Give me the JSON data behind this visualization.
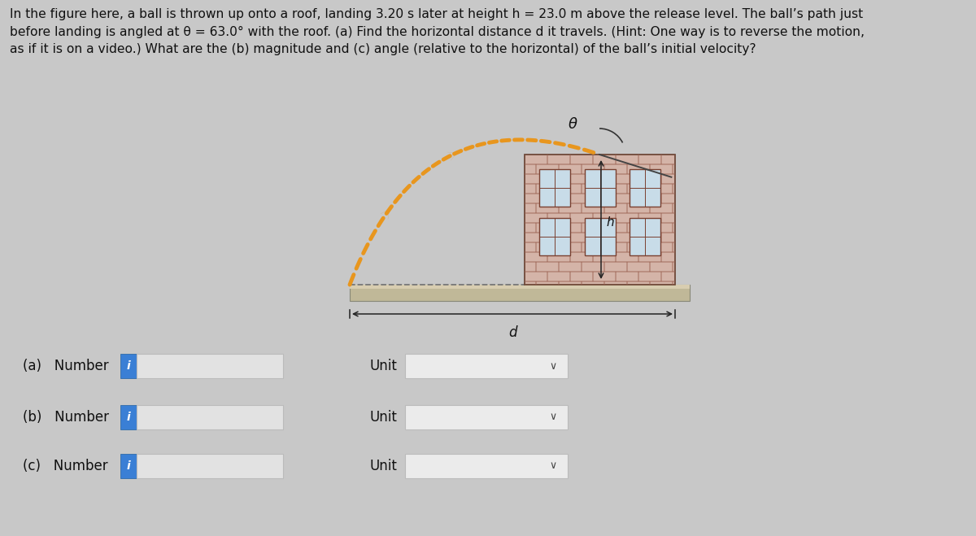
{
  "bg_color": "#c8c8c8",
  "title_text": "In the figure here, a ball is thrown up onto a roof, landing 3.20 s later at height h = 23.0 m above the release level. The ball’s path just\nbefore landing is angled at θ = 63.0° with the roof. (a) Find the horizontal distance d it travels. (Hint: One way is to reverse the motion,\nas if it is on a video.) What are the (b) magnitude and (c) angle (relative to the horizontal) of the ball’s initial velocity?",
  "label_a": "(a)   Number",
  "label_b": "(b)   Number",
  "label_c": "(c)   Number",
  "unit_label": "Unit",
  "input_box_color": "#e2e2e2",
  "input_box_border": "#bbbbbb",
  "blue_button_color": "#3a7fd5",
  "unit_box_color": "#ebebeb",
  "chevron_color": "#444444",
  "building_brick_color": "#d4b4a8",
  "building_outline_color": "#5a3a2a",
  "window_color": "#c8dce8",
  "window_frame_color": "#7a4030",
  "ground_color": "#c0b898",
  "ground_top_color": "#d8cdb0",
  "arrow_color": "#e8961e",
  "dashed_line_color": "#777777",
  "theta_label": "θ",
  "h_label": "h",
  "d_label": "d"
}
